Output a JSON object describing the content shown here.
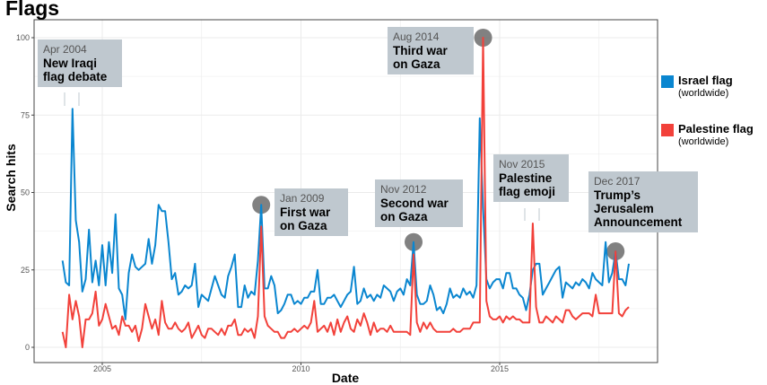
{
  "chart_data": {
    "type": "line",
    "title": "Flags",
    "xlabel": "Date",
    "ylabel": "Search hits",
    "x_start": "2004-01",
    "x_end": "2018-04",
    "x_frequency": "monthly",
    "xlim": [
      2003.75,
      2019.4
    ],
    "ylim": [
      -4,
      105
    ],
    "x_ticks": [
      "2005",
      "2010",
      "2015"
    ],
    "y_ticks": [
      "0",
      "25",
      "50",
      "75",
      "100"
    ],
    "grid": true,
    "legend_position": "right",
    "series": [
      {
        "name": "Israel flag",
        "subtitle": "(worldwide)",
        "color": "#0a86d0",
        "values": [
          28,
          21,
          20,
          77,
          41,
          34,
          18,
          22,
          38,
          21,
          28,
          20,
          33,
          20,
          34,
          24,
          43,
          19,
          17,
          9,
          24,
          30,
          26,
          25,
          26,
          27,
          35,
          27,
          33,
          46,
          44,
          44,
          34,
          22,
          24,
          17,
          18,
          20,
          19,
          20,
          27,
          13,
          17,
          16,
          15,
          19,
          23,
          20,
          17,
          16,
          23,
          26,
          30,
          13,
          13,
          20,
          16,
          18,
          17,
          28,
          46,
          19,
          19,
          23,
          20,
          11,
          12,
          14,
          17,
          17,
          14,
          15,
          14,
          16,
          16,
          18,
          18,
          25,
          14,
          14,
          16,
          16,
          17,
          15,
          13,
          15,
          17,
          18,
          26,
          14,
          15,
          19,
          16,
          17,
          15,
          17,
          16,
          20,
          19,
          18,
          15,
          18,
          19,
          17,
          22,
          20,
          34,
          17,
          14,
          14,
          15,
          20,
          17,
          12,
          13,
          11,
          14,
          19,
          16,
          17,
          16,
          19,
          17,
          18,
          16,
          20,
          74,
          45,
          22,
          19,
          21,
          22,
          22,
          19,
          24,
          24,
          19,
          19,
          17,
          16,
          12,
          17,
          25,
          27,
          27,
          17,
          19,
          21,
          23,
          25,
          26,
          16,
          21,
          20,
          19,
          21,
          20,
          22,
          21,
          19,
          24,
          22,
          21,
          20,
          34,
          21,
          24,
          31,
          22,
          22,
          20,
          27
        ]
      },
      {
        "name": "Palestine flag",
        "subtitle": "(worldwide)",
        "color": "#f2413a",
        "values": [
          5,
          0,
          17,
          9,
          15,
          10,
          0,
          9,
          9,
          11,
          18,
          7,
          9,
          14,
          10,
          6,
          7,
          4,
          10,
          7,
          7,
          5,
          7,
          2,
          6,
          14,
          10,
          6,
          9,
          4,
          15,
          8,
          6,
          6,
          8,
          6,
          5,
          6,
          8,
          3,
          5,
          7,
          4,
          3,
          6,
          6,
          5,
          4,
          6,
          4,
          7,
          7,
          9,
          4,
          4,
          6,
          5,
          6,
          3,
          10,
          39,
          10,
          7,
          6,
          5,
          5,
          3,
          3,
          5,
          5,
          6,
          5,
          6,
          7,
          6,
          8,
          15,
          5,
          6,
          7,
          5,
          8,
          4,
          9,
          5,
          8,
          10,
          6,
          5,
          9,
          7,
          11,
          8,
          4,
          8,
          5,
          6,
          6,
          5,
          7,
          5,
          5,
          5,
          5,
          5,
          4,
          30,
          8,
          5,
          8,
          6,
          8,
          6,
          5,
          5,
          5,
          5,
          5,
          6,
          5,
          5,
          6,
          6,
          6,
          8,
          8,
          8,
          100,
          15,
          10,
          9,
          9,
          10,
          8,
          10,
          9,
          10,
          9,
          9,
          8,
          8,
          8,
          40,
          13,
          8,
          8,
          10,
          9,
          8,
          10,
          9,
          8,
          12,
          12,
          10,
          9,
          10,
          11,
          11,
          11,
          10,
          17,
          11,
          11,
          11,
          11,
          11,
          31,
          11,
          10,
          12,
          13
        ]
      }
    ],
    "annotations": [
      {
        "date": "Apr 2004",
        "text": "New Iraqi\nflag debate"
      },
      {
        "date": "Jan 2009",
        "text": "First war\non Gaza",
        "marker_month": "2009-01",
        "marker_value": 46
      },
      {
        "date": "Nov 2012",
        "text": "Second war\non Gaza",
        "marker_month": "2012-11",
        "marker_value": 34
      },
      {
        "date": "Aug 2014",
        "text": "Third war\non Gaza",
        "marker_month": "2014-08",
        "marker_value": 100
      },
      {
        "date": "Nov 2015",
        "text": "Palestine\nflag emoji"
      },
      {
        "date": "Dec 2017",
        "text": "Trump’s\nJerusalem\nAnnouncement",
        "marker_month": "2017-12",
        "marker_value": 31
      }
    ]
  }
}
